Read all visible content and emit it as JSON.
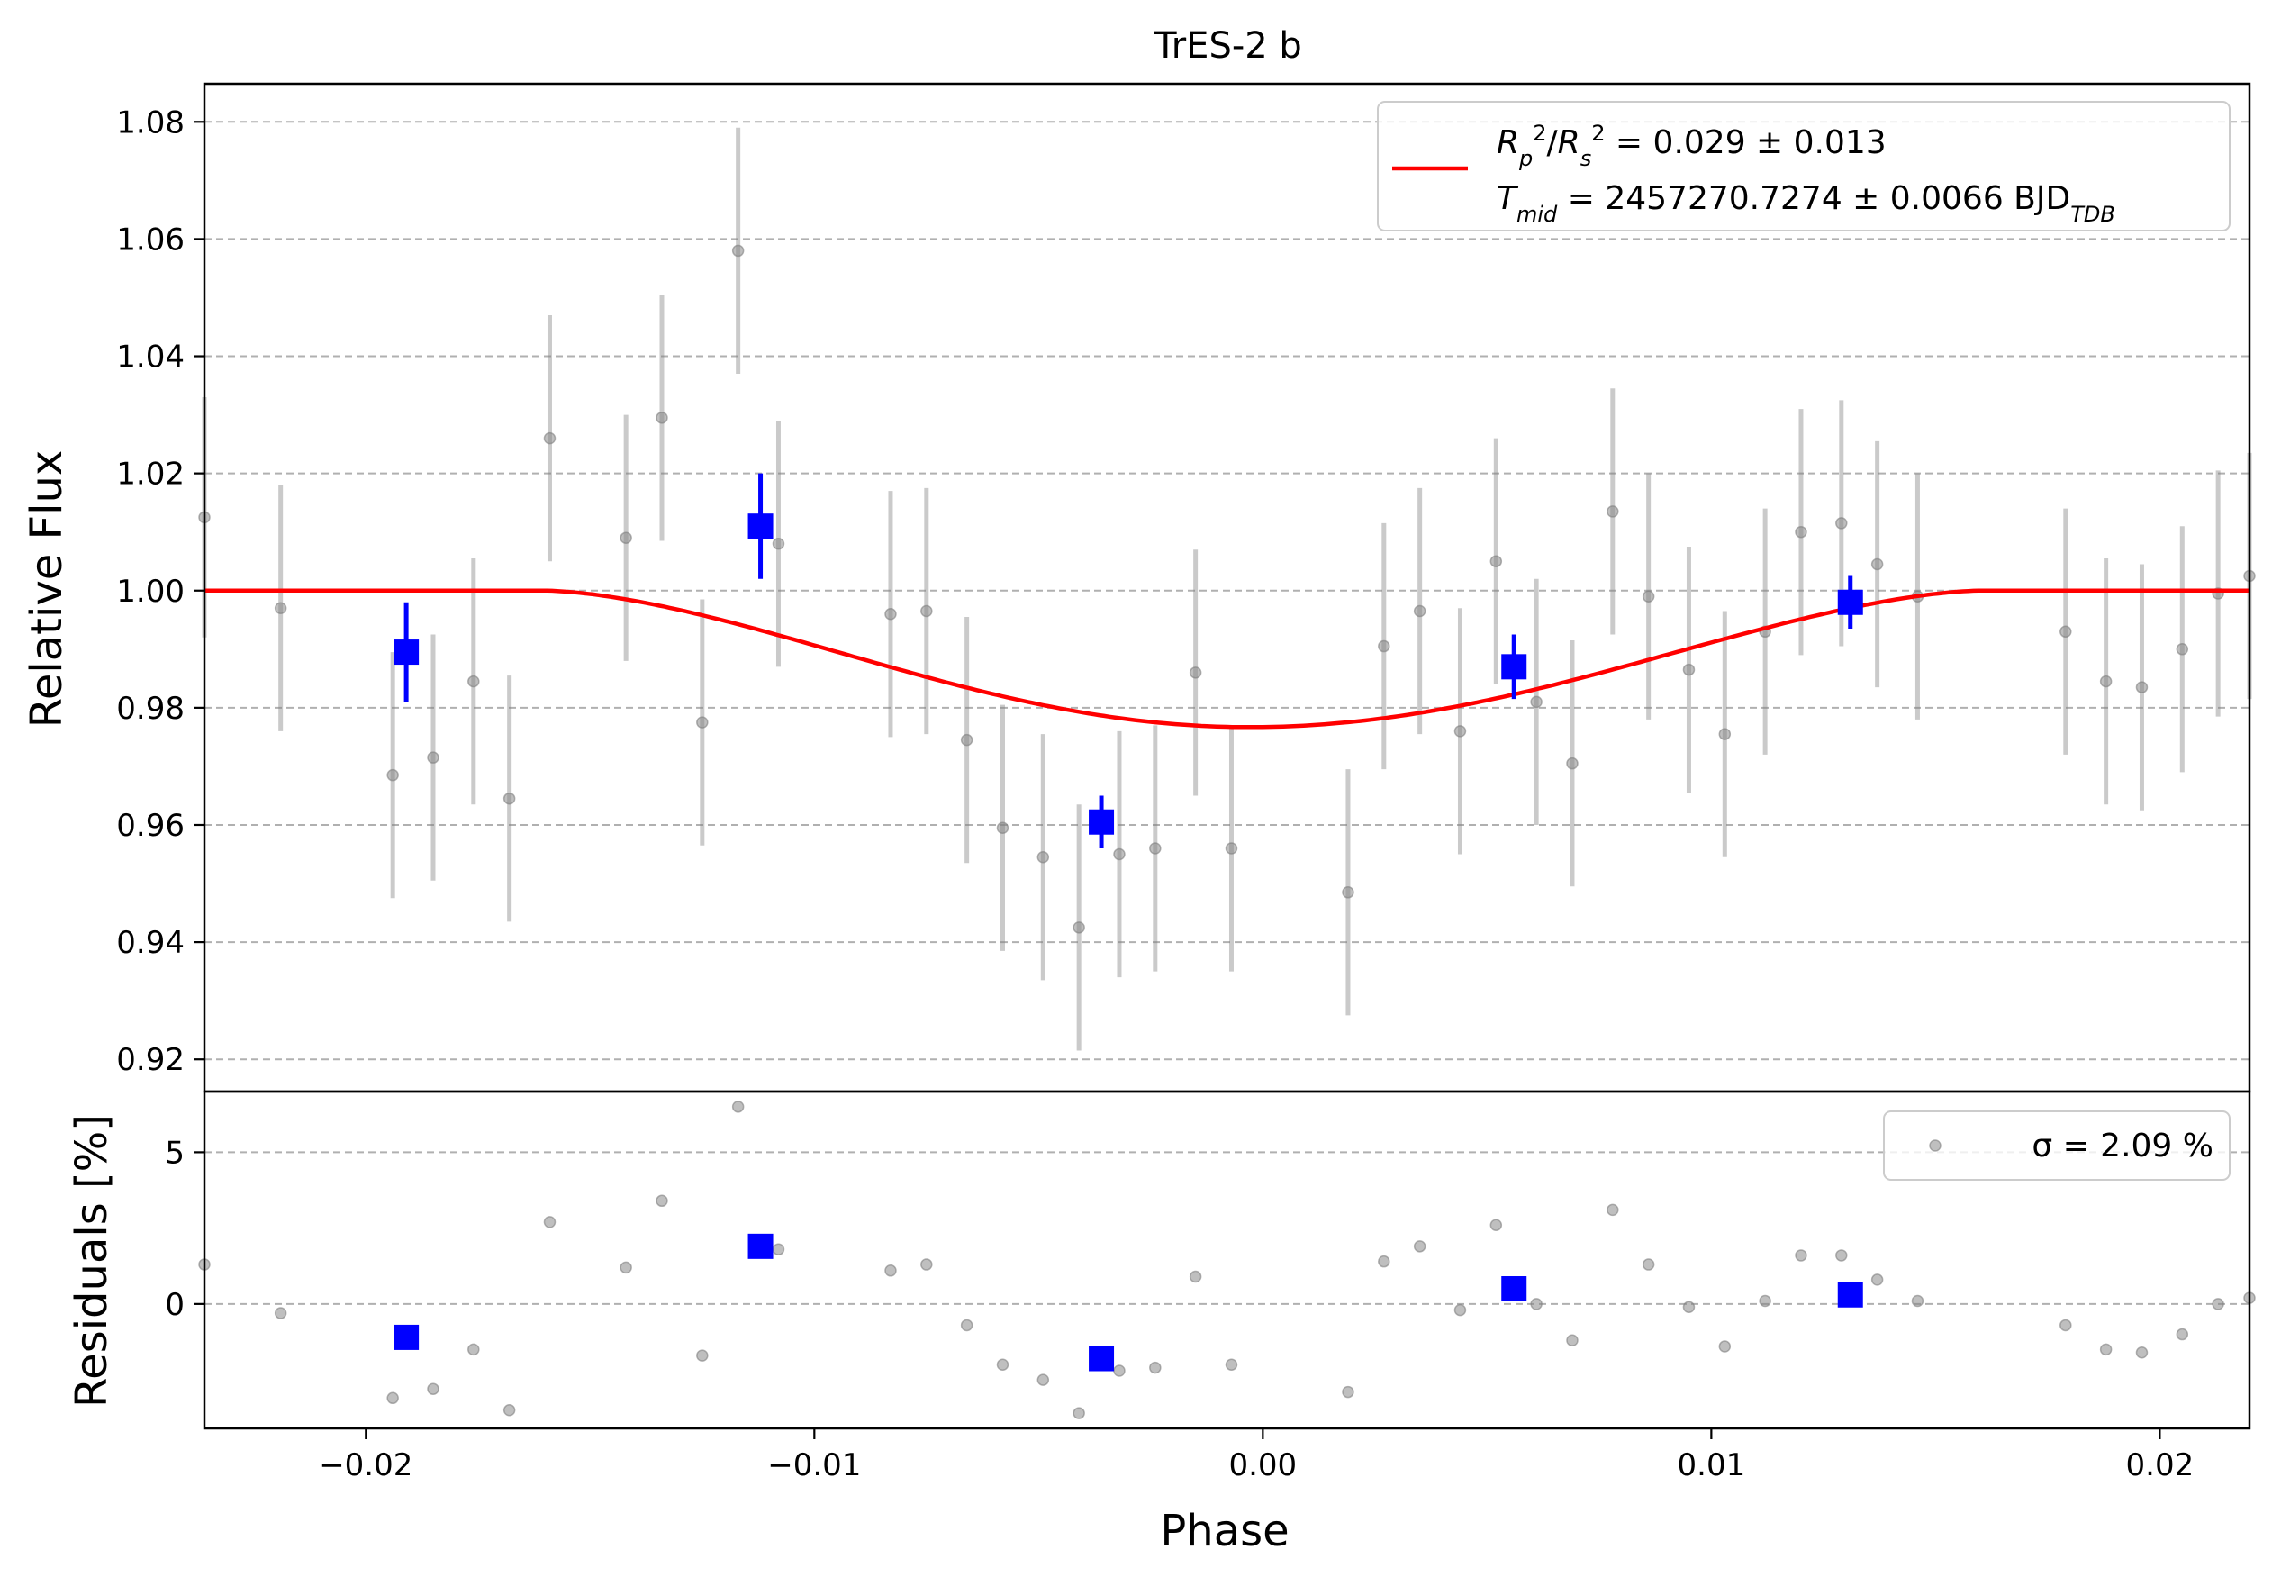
{
  "title": "TrES-2 b",
  "chart_data": [
    {
      "type": "scatter",
      "panel": "light-curve",
      "title": "TrES-2 b",
      "xlabel": "Phase",
      "ylabel": "Relative Flux",
      "xlim": [
        -0.0236,
        0.022
      ],
      "ylim": [
        0.9145,
        1.0865
      ],
      "yticks": [
        0.92,
        0.94,
        0.96,
        0.98,
        1.0,
        1.02,
        1.04,
        1.06,
        1.08
      ],
      "ytick_labels": [
        "0.92",
        "0.94",
        "0.96",
        "0.98",
        "1.00",
        "1.02",
        "1.04",
        "1.06",
        "1.08"
      ],
      "grid": "y-dashed",
      "legend_position": "top-right",
      "legend": {
        "model_line_1": "R_p^2/R_s^2 = 0.029 ± 0.013",
        "model_line_2": "T_mid = 2457270.7274 ± 0.0066 BJD_TDB"
      },
      "model": {
        "name": "transit model",
        "color": "#ff0000",
        "ingress_start": -0.016,
        "egress_end": 0.016,
        "center": -0.0003,
        "depth": 0.0233
      },
      "raw_series": {
        "color": "#808080",
        "x": [
          -0.0236,
          -0.0219,
          -0.0194,
          -0.0185,
          -0.0176,
          -0.0168,
          -0.0159,
          -0.0142,
          -0.0134,
          -0.0125,
          -0.0117,
          -0.0108,
          -0.0083,
          -0.0075,
          -0.0066,
          -0.0058,
          -0.0049,
          -0.0041,
          -0.0032,
          -0.0024,
          -0.0015,
          -0.0007,
          0.0019,
          0.0027,
          0.0035,
          0.0044,
          0.0052,
          0.0061,
          0.0069,
          0.0078,
          0.0086,
          0.0095,
          0.0103,
          0.0112,
          0.012,
          0.0129,
          0.0137,
          0.0146,
          0.0179,
          0.0188,
          0.0196,
          0.0205,
          0.0213,
          0.022
        ],
        "y": [
          1.0125,
          0.997,
          0.9685,
          0.9715,
          0.9845,
          0.9645,
          1.026,
          1.009,
          1.0295,
          0.9775,
          1.058,
          1.008,
          0.996,
          0.9965,
          0.9745,
          0.9595,
          0.9545,
          0.9425,
          0.955,
          0.956,
          0.986,
          0.956,
          0.9485,
          0.9905,
          0.9965,
          0.976,
          1.005,
          0.981,
          0.9705,
          1.0135,
          0.999,
          0.9865,
          0.9755,
          0.993,
          1.01,
          1.0115,
          1.0045,
          0.999,
          0.993,
          0.9845,
          0.9835,
          0.99,
          0.9995,
          1.0025
        ],
        "err": [
          0.0205,
          0.021,
          0.021,
          0.021,
          0.021,
          0.021,
          0.021,
          0.021,
          0.021,
          0.021,
          0.021,
          0.021,
          0.021,
          0.021,
          0.021,
          0.021,
          0.021,
          0.021,
          0.021,
          0.021,
          0.021,
          0.021,
          0.021,
          0.021,
          0.021,
          0.021,
          0.021,
          0.021,
          0.021,
          0.021,
          0.021,
          0.021,
          0.021,
          0.021,
          0.021,
          0.021,
          0.021,
          0.021,
          0.021,
          0.021,
          0.021,
          0.021,
          0.021,
          0.021
        ]
      },
      "binned_series": {
        "color": "#0000ff",
        "x": [
          -0.0191,
          -0.0112,
          -0.0036,
          0.0056,
          0.0131
        ],
        "y": [
          0.9895,
          1.011,
          0.9605,
          0.987,
          0.998
        ],
        "err": [
          0.0085,
          0.009,
          0.0045,
          0.0055,
          0.0045
        ]
      }
    },
    {
      "type": "scatter",
      "panel": "residuals",
      "xlabel": "Phase",
      "ylabel": "Residuals [%]",
      "xlim": [
        -0.0236,
        0.022
      ],
      "ylim": [
        -4.1,
        7.0
      ],
      "xticks": [
        -0.02,
        -0.01,
        0.0,
        0.01,
        0.02
      ],
      "xtick_labels": [
        "−0.02",
        "−0.01",
        "0.00",
        "0.01",
        "0.02"
      ],
      "yticks": [
        0,
        5
      ],
      "ytick_labels": [
        "0",
        "5"
      ],
      "grid": "y-dashed",
      "legend_position": "top-right",
      "legend": {
        "label": "σ = 2.09 %"
      },
      "raw_series": {
        "color": "#808080",
        "x": [
          -0.0236,
          -0.0219,
          -0.0194,
          -0.0185,
          -0.0176,
          -0.0168,
          -0.0159,
          -0.0142,
          -0.0134,
          -0.0125,
          -0.0117,
          -0.0108,
          -0.0083,
          -0.0075,
          -0.0066,
          -0.0058,
          -0.0049,
          -0.0041,
          -0.0032,
          -0.0024,
          -0.0015,
          -0.0007,
          0.0019,
          0.0027,
          0.0035,
          0.0044,
          0.0052,
          0.0061,
          0.0069,
          0.0078,
          0.0086,
          0.0095,
          0.0103,
          0.0112,
          0.012,
          0.0129,
          0.0137,
          0.0146,
          0.0179,
          0.0188,
          0.0196,
          0.0205,
          0.0213,
          0.022
        ],
        "y": [
          1.3,
          -0.3,
          -3.1,
          -2.8,
          -1.5,
          -3.5,
          2.7,
          1.2,
          3.4,
          -1.7,
          6.5,
          1.8,
          1.1,
          1.3,
          -0.7,
          -2.0,
          -2.5,
          -3.6,
          -2.2,
          -2.1,
          0.9,
          -2.0,
          -2.9,
          1.4,
          1.9,
          -0.2,
          2.6,
          0.0,
          -1.2,
          3.1,
          1.3,
          -0.1,
          -1.4,
          0.1,
          1.6,
          1.6,
          0.8,
          0.1,
          -0.7,
          -1.5,
          -1.6,
          -1.0,
          0.0,
          0.2
        ]
      },
      "binned_series": {
        "color": "#0000ff",
        "x": [
          -0.0191,
          -0.0112,
          -0.0036,
          0.0056,
          0.0131
        ],
        "y": [
          -1.1,
          1.9,
          -1.8,
          0.5,
          0.3
        ]
      }
    }
  ]
}
